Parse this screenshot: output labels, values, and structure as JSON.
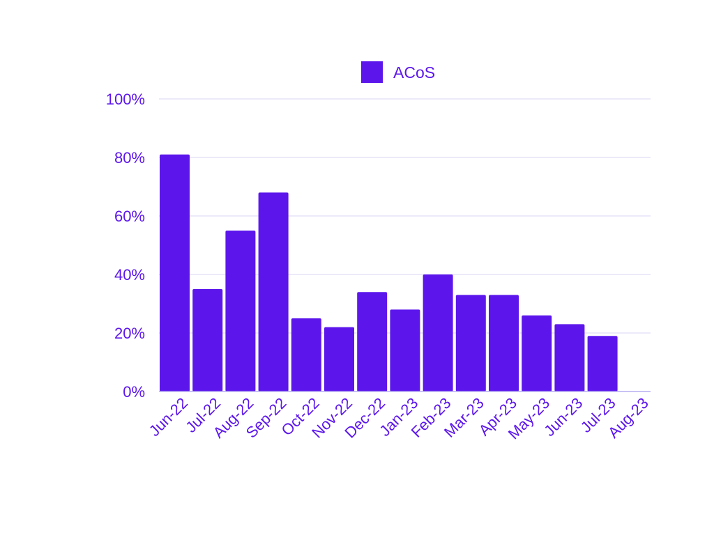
{
  "chart_data": {
    "type": "bar",
    "categories": [
      "Jun-22",
      "Jul-22",
      "Aug-22",
      "Sep-22",
      "Oct-22",
      "Nov-22",
      "Dec-22",
      "Jan-23",
      "Feb-23",
      "Mar-23",
      "Apr-23",
      "May-23",
      "Jun-23",
      "Jul-23",
      "Aug-23"
    ],
    "series": [
      {
        "name": "ACoS",
        "values": [
          81,
          35,
          55,
          68,
          25,
          22,
          34,
          28,
          40,
          33,
          33,
          26,
          23,
          19,
          0
        ]
      }
    ],
    "y_ticks": [
      "0%",
      "20%",
      "40%",
      "60%",
      "80%",
      "100%"
    ],
    "ylim": [
      0,
      100
    ],
    "grid": true,
    "legend_position": "top-center",
    "title": "",
    "xlabel": "",
    "ylabel": ""
  },
  "colors": {
    "bar": "#5c16ec",
    "text": "#5c16ec",
    "grid": "#d9d6f4",
    "axis": "#b7aef0"
  }
}
